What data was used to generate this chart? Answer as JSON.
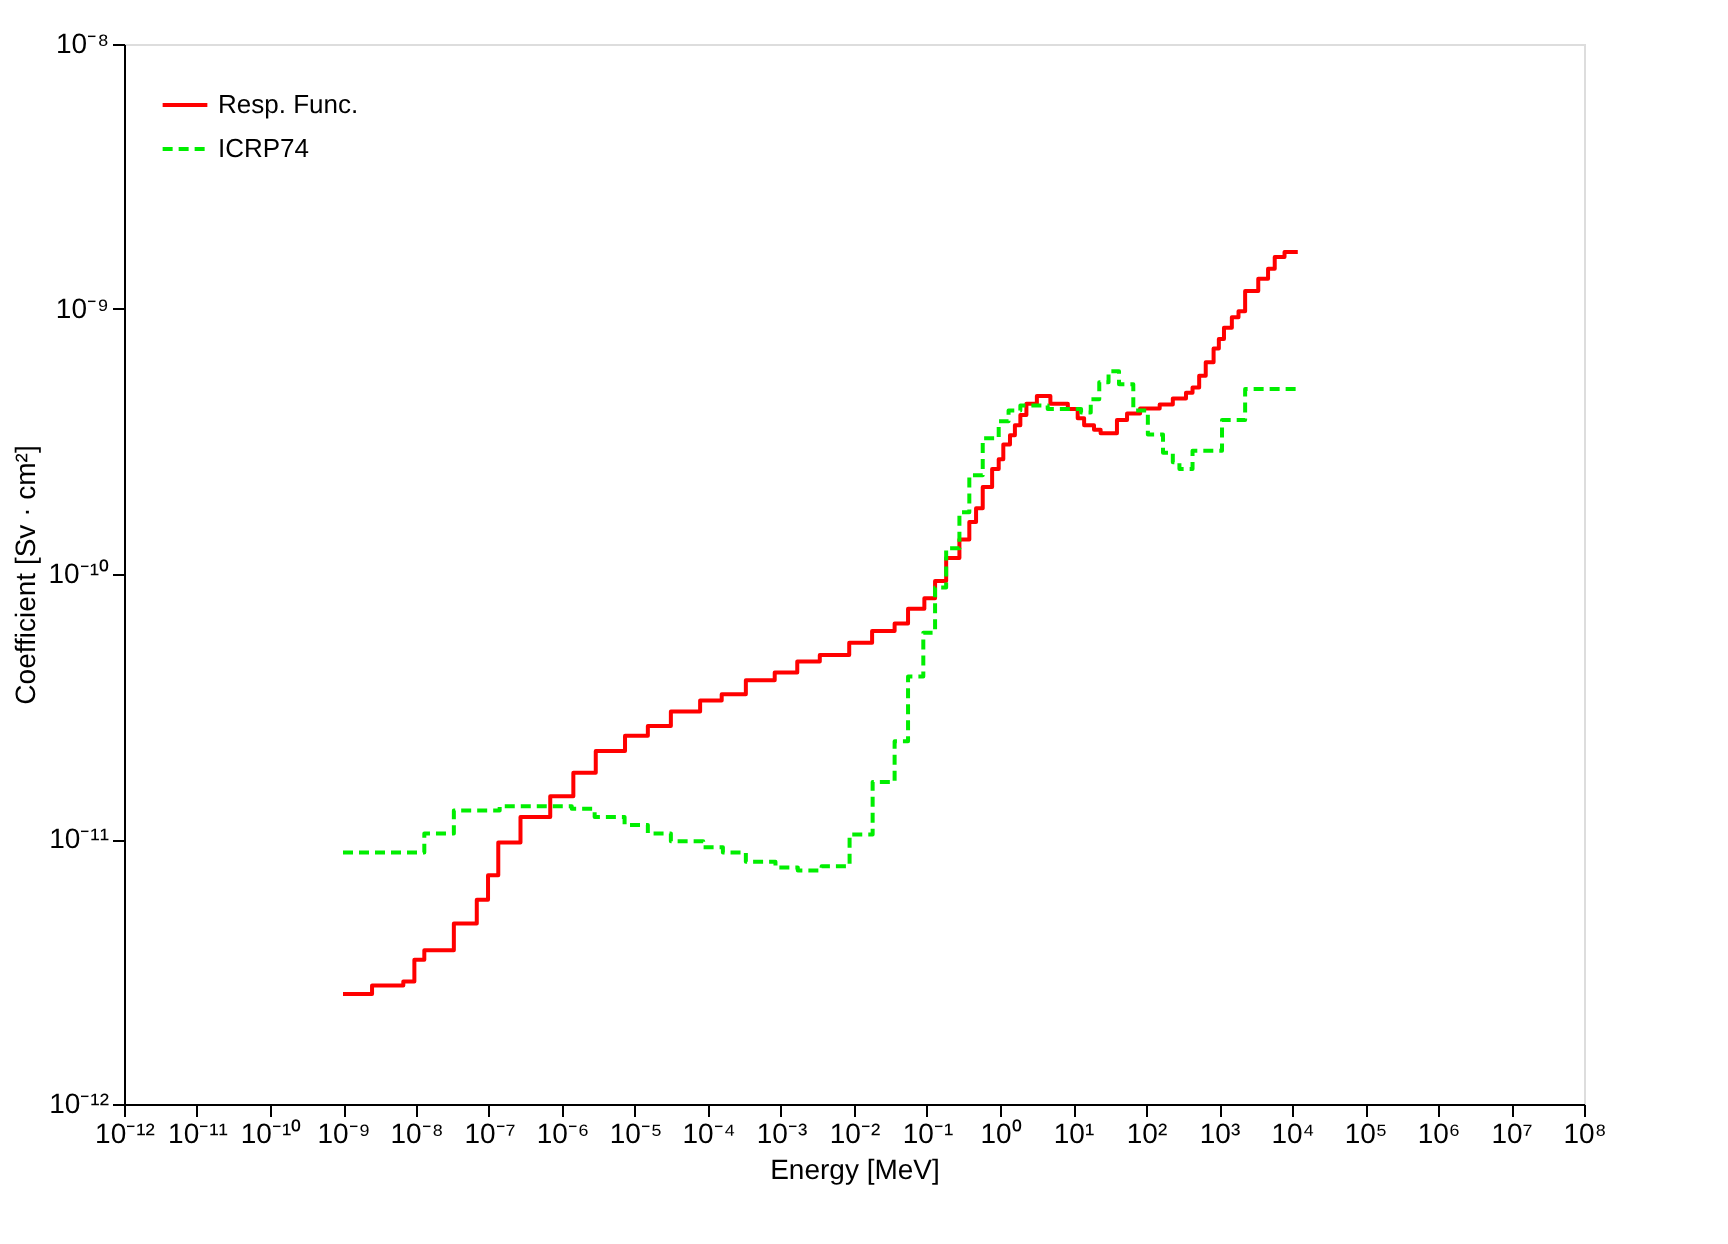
{
  "chart_data": {
    "type": "step",
    "xlabel": "Energy [MeV]",
    "ylabel": "Coefficient [Sv · cm²]",
    "log": "xy",
    "legend": "top left",
    "xlim": [
      1e-12,
      100000000.0
    ],
    "ylim": [
      1e-12,
      1e-08
    ],
    "xticks": [
      {
        "value": 1e-12,
        "label": "10⁻¹²"
      },
      {
        "value": 1e-11,
        "label": "10⁻¹¹"
      },
      {
        "value": 1e-10,
        "label": "10⁻¹⁰"
      },
      {
        "value": 1e-09,
        "label": "10⁻⁹"
      },
      {
        "value": 1e-08,
        "label": "10⁻⁸"
      },
      {
        "value": 1e-07,
        "label": "10⁻⁷"
      },
      {
        "value": 1e-06,
        "label": "10⁻⁶"
      },
      {
        "value": 1e-05,
        "label": "10⁻⁵"
      },
      {
        "value": 0.0001,
        "label": "10⁻⁴"
      },
      {
        "value": 0.001,
        "label": "10⁻³"
      },
      {
        "value": 0.01,
        "label": "10⁻²"
      },
      {
        "value": 0.1,
        "label": "10⁻¹"
      },
      {
        "value": 1,
        "label": "10⁰"
      },
      {
        "value": 10,
        "label": "10¹"
      },
      {
        "value": 100,
        "label": "10²"
      },
      {
        "value": 1000,
        "label": "10³"
      },
      {
        "value": 10000,
        "label": "10⁴"
      },
      {
        "value": 100000,
        "label": "10⁵"
      },
      {
        "value": 1000000,
        "label": "10⁶"
      },
      {
        "value": 10000000,
        "label": "10⁷"
      },
      {
        "value": 100000000,
        "label": "10⁸"
      }
    ],
    "yticks": [
      {
        "value": 1e-12,
        "label": "10⁻¹²"
      },
      {
        "value": 1e-11,
        "label": "10⁻¹¹"
      },
      {
        "value": 1e-10,
        "label": "10⁻¹⁰"
      },
      {
        "value": 1e-09,
        "label": "10⁻⁹"
      },
      {
        "value": 1e-08,
        "label": "10⁻⁸"
      }
    ],
    "series": [
      {
        "name": "Resp. Func.",
        "color": "#ff0000",
        "line_style": "solid",
        "x": [
          1e-09,
          2.5e-09,
          3.7e-09,
          6.7e-09,
          9.5e-09,
          1.3e-08,
          3.3e-08,
          6.8e-08,
          9.7e-08,
          1.34e-07,
          2.7e-07,
          6.9e-07,
          1.43e-06,
          2.9e-06,
          7.3e-06,
          1.5e-05,
          3.1e-05,
          7.8e-05,
          0.000154,
          0.00033,
          0.00082,
          0.00167,
          0.0034,
          0.0086,
          0.0177,
          0.036,
          0.055,
          0.092,
          0.129,
          0.183,
          0.278,
          0.38,
          0.47,
          0.58,
          0.78,
          0.96,
          1.11,
          1.37,
          1.6,
          1.9,
          2.3,
          3.2,
          4.9,
          8.5,
          11.6,
          14.2,
          19.4,
          23.9,
          36,
          40,
          55,
          83,
          154,
          233,
          353,
          434,
          535,
          658,
          843,
          995,
          1170,
          1500,
          1850,
          2280,
          3450,
          4700,
          5800,
          7900,
          12000
        ],
        "values": [
          2.6e-12,
          2.8e-12,
          2.8e-12,
          2.9e-12,
          3.5e-12,
          3.8e-12,
          4.8e-12,
          5.9e-12,
          7.3e-12,
          9.7e-12,
          1.21e-11,
          1.45e-11,
          1.78e-11,
          2.15e-11,
          2.45e-11,
          2.67e-11,
          3.03e-11,
          3.33e-11,
          3.52e-11,
          3.97e-11,
          4.25e-11,
          4.68e-11,
          4.95e-11,
          5.5e-11,
          6.1e-11,
          6.5e-11,
          7.4e-11,
          8.1e-11,
          9.4e-11,
          1.15e-10,
          1.35e-10,
          1.57e-10,
          1.77e-10,
          2.13e-10,
          2.49e-10,
          2.71e-10,
          3.08e-10,
          3.34e-10,
          3.64e-10,
          3.98e-10,
          4.39e-10,
          4.7e-10,
          4.39e-10,
          4.19e-10,
          3.87e-10,
          3.64e-10,
          3.5e-10,
          3.4e-10,
          3.4e-10,
          3.81e-10,
          4.03e-10,
          4.21e-10,
          4.36e-10,
          4.59e-10,
          4.83e-10,
          5.06e-10,
          5.6e-10,
          6.3e-10,
          7.1e-10,
          7.7e-10,
          8.5e-10,
          9.3e-10,
          9.8e-10,
          1.17e-09,
          1.3e-09,
          1.42e-09,
          1.57e-09,
          1.64e-09,
          1.64e-09
        ]
      },
      {
        "name": "ICRP74",
        "color": "#00ee00",
        "line_style": "dashed",
        "x": [
          1e-09,
          1.3e-08,
          3.3e-08,
          1.4e-07,
          1.36e-06,
          2.8e-06,
          7.2e-06,
          1.5e-05,
          3.1e-05,
          8.6e-05,
          0.00016,
          0.00033,
          0.00084,
          0.0017,
          0.0036,
          0.0087,
          0.018,
          0.036,
          0.055,
          0.089,
          0.129,
          0.183,
          0.278,
          0.38,
          0.58,
          0.96,
          1.31,
          1.9,
          4.5,
          12.9,
          17.5,
          22.9,
          30.7,
          42.7,
          67,
          106,
          171,
          233,
          287,
          434,
          1100,
          2280,
          12000
        ],
        "values": [
          8.9e-12,
          1.05e-11,
          1.28e-11,
          1.33e-11,
          1.3e-11,
          1.21e-11,
          1.13e-11,
          1.05e-11,
          9.8e-12,
          9.3e-12,
          8.9e-12,
          8.2e-12,
          7.8e-12,
          7.6e-12,
          7.9e-12,
          1.04e-11,
          1.64e-11,
          2.34e-11,
          4.1e-11,
          6e-11,
          8.9e-11,
          1.25e-10,
          1.71e-10,
          2.36e-10,
          3.25e-10,
          3.77e-10,
          4.14e-10,
          4.32e-10,
          4.19e-10,
          4.07e-10,
          4.56e-10,
          5.29e-10,
          5.82e-10,
          5.2e-10,
          4.14e-10,
          3.36e-10,
          2.87e-10,
          2.64e-10,
          2.49e-10,
          2.92e-10,
          3.81e-10,
          4.99e-10,
          4.99e-10
        ]
      }
    ]
  }
}
